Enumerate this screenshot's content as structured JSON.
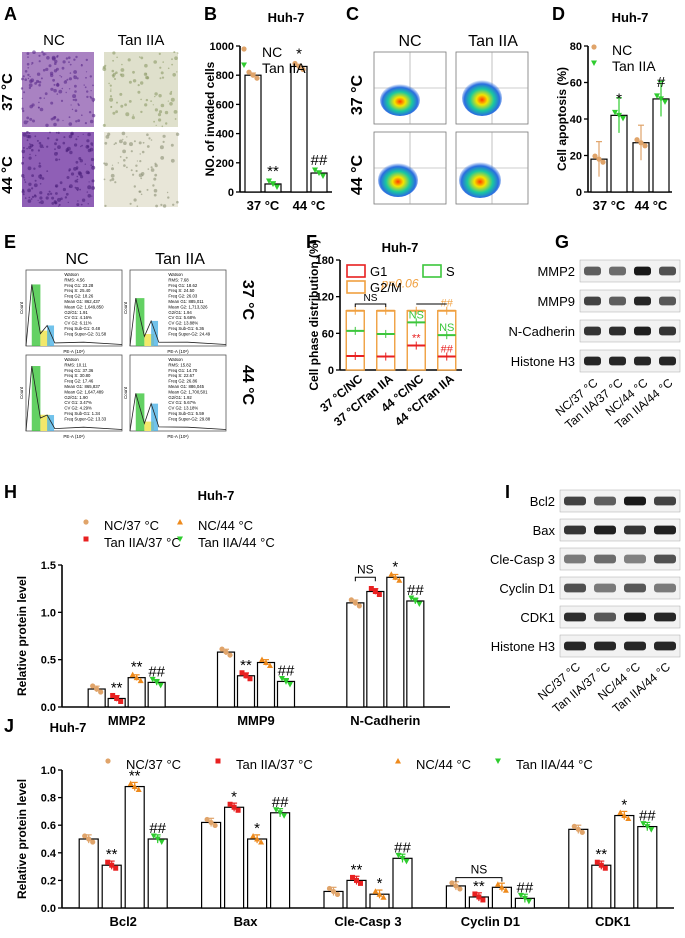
{
  "panels": {
    "A": {
      "letter": "A",
      "cols": [
        "NC",
        "Tan IIA"
      ],
      "rows": [
        "37 °C",
        "44 °C"
      ]
    },
    "C": {
      "letter": "C",
      "cols": [
        "NC",
        "Tan IIA"
      ],
      "rows": [
        "37 °C",
        "44 °C"
      ]
    },
    "E": {
      "letter": "E",
      "cols": [
        "NC",
        "Tan IIA"
      ],
      "rows": [
        "37 °C",
        "44 °C"
      ],
      "axis_x": "PE-A (10⁶)",
      "axis_y": "Count",
      "stats": [
        [
          "Watson",
          "RMS: 4.56",
          "Freq G1: 23.28",
          "Freq S: 25.40",
          "Freq G2: 18.26",
          "Mean G1: 862,437",
          "Mean G2: 1,649,850",
          "G2/G1: 1.91",
          "CV G1: 4.16%",
          "CV G2: 6.11%",
          "Freq Sub-G1: 0.48",
          "Freq Super-G2: 31.58"
        ],
        [
          "Watson",
          "RMS: 7.68",
          "Freq G1: 18.62",
          "Freq S: 24.50",
          "Freq G2: 26.03",
          "Mean G1: 885,011",
          "Mean G2: 1,713,326",
          "G2/G1: 1.94",
          "CV G1: 5.68%",
          "CV G2: 13.88%",
          "Freq Sub-G1: 6.36",
          "Freq Super-G2: 24.49"
        ],
        [
          "Watson",
          "RMS: 10.11",
          "Freq G1: 37.36",
          "Freq S: 30.80",
          "Freq G2: 17.46",
          "Mean G1: 865,837",
          "Mean G2: 1,647,489",
          "G2/G1: 1.90",
          "CV G1: 3.47%",
          "CV G2: 4.29%",
          "Freq Sub-G1: 1.34",
          "Freq Super-G2: 13.33"
        ],
        [
          "Watson",
          "RMS: 15.82",
          "Freq G1: 14.70",
          "Freq S: 22.67",
          "Freq G2: 26.86",
          "Mean G1: 886,045",
          "Mean G2: 1,700,501",
          "G2/G1: 1.92",
          "CV G1: 5.67%",
          "CV G2: 13.18%",
          "Freq Sub-G1: 5.59",
          "Freq Super-G2: 29.88"
        ]
      ]
    },
    "G": {
      "letter": "G",
      "bands": [
        "MMP2",
        "MMP9",
        "N-Cadherin",
        "Histone H3"
      ],
      "lanes": [
        "NC/37 °C",
        "Tan IIA/37 °C",
        "NC/44 °C",
        "Tan IIA/44 °C"
      ]
    },
    "I": {
      "letter": "I",
      "bands": [
        "Bcl2",
        "Bax",
        "Cle-Casp 3",
        "Cyclin D1",
        "CDK1",
        "Histone H3"
      ],
      "lanes": [
        "NC/37 °C",
        "Tan IIA/37 °C",
        "NC/44 °C",
        "Tan IIA/44 °C"
      ]
    }
  },
  "colors": {
    "nc37": "#e0a46a",
    "tan37": "#e82020",
    "nc44": "#ee8a1c",
    "tan44": "#2ecc2e",
    "g1": "#e82020",
    "s": "#3cc63c",
    "g2m": "#f0a040",
    "bar_edge": "#000000"
  },
  "chart_data": [
    {
      "id": "B",
      "letter": "B",
      "type": "bar",
      "title": "Huh-7",
      "ylabel": "NO. of invaded cells",
      "ylim": [
        0,
        1000
      ],
      "yticks": [
        "0",
        "200",
        "400",
        "600",
        "800",
        "1000"
      ],
      "categories": [
        "37 °C",
        "44 °C"
      ],
      "series": [
        {
          "name": "NC",
          "values": [
            800,
            860
          ]
        },
        {
          "name": "Tan IIA",
          "values": [
            55,
            130
          ]
        }
      ],
      "annotations": [
        {
          "text": "**",
          "series": 1,
          "category": 0
        },
        {
          "text": "*",
          "series": 0,
          "category": 1
        },
        {
          "text": "##",
          "series": 1,
          "category": 1
        }
      ]
    },
    {
      "id": "D",
      "letter": "D",
      "type": "bar",
      "title": "Huh-7",
      "ylabel": "Cell apoptosis (%)",
      "ylim": [
        0,
        80
      ],
      "yticks": [
        "0",
        "20",
        "40",
        "60",
        "80"
      ],
      "categories": [
        "37 °C",
        "44 °C"
      ],
      "series": [
        {
          "name": "NC",
          "values": [
            18,
            27
          ]
        },
        {
          "name": "Tan IIA",
          "values": [
            42,
            51
          ]
        }
      ],
      "annotations": [
        {
          "text": "*",
          "series": 1,
          "category": 0
        },
        {
          "text": "#",
          "series": 1,
          "category": 1
        }
      ]
    },
    {
      "id": "F",
      "letter": "F",
      "type": "bar",
      "title": "Huh-7",
      "ylabel": "Cell phase distribution (%)",
      "ylim": [
        0,
        180
      ],
      "yticks": [
        "0",
        "60",
        "120",
        "180"
      ],
      "categories": [
        "37 °C/NC",
        "37 °C/Tan IIA",
        "44 °C/NC",
        "44 °C/Tan IIA"
      ],
      "series": [
        {
          "name": "G1",
          "values": [
            23,
            22,
            40,
            22
          ]
        },
        {
          "name": "S",
          "values": [
            64,
            59,
            78,
            57
          ]
        },
        {
          "name": "G2/M",
          "values": [
            97,
            97,
            97,
            97
          ]
        }
      ],
      "pvalue": "p=0.06",
      "ns_bracket": "NS",
      "annotations": [
        {
          "text": "NS",
          "series": 1,
          "category": 2
        },
        {
          "text": "**",
          "series": 0,
          "category": 2
        },
        {
          "text": "NS",
          "series": 1,
          "category": 3
        },
        {
          "text": "##",
          "series": 0,
          "category": 3
        },
        {
          "text": "##",
          "series": 2,
          "category": 3
        }
      ]
    },
    {
      "id": "H",
      "letter": "H",
      "type": "bar",
      "title": "Huh-7",
      "ylabel": "Relative protein level",
      "ylim": [
        0,
        1.5
      ],
      "yticks": [
        "0.0",
        "0.5",
        "1.0",
        "1.5"
      ],
      "categories": [
        "MMP2",
        "MMP9",
        "N-Cadherin"
      ],
      "series": [
        {
          "name": "NC/37 °C",
          "values": [
            0.19,
            0.58,
            1.1
          ]
        },
        {
          "name": "Tan IIA/37 °C",
          "values": [
            0.09,
            0.33,
            1.22
          ]
        },
        {
          "name": "NC/44 °C",
          "values": [
            0.31,
            0.47,
            1.37
          ]
        },
        {
          "name": "Tan IIA/44 °C",
          "values": [
            0.26,
            0.27,
            1.12
          ]
        }
      ],
      "brackets": [
        {
          "text": "NS",
          "category": 2,
          "from": 0,
          "to": 1,
          "y": 1.37
        }
      ],
      "annotations": [
        {
          "text": "**",
          "series": 1,
          "category": 0
        },
        {
          "text": "**",
          "series": 2,
          "category": 0
        },
        {
          "text": "##",
          "series": 3,
          "category": 0
        },
        {
          "text": "**",
          "series": 1,
          "category": 1
        },
        {
          "text": "##",
          "series": 3,
          "category": 1
        },
        {
          "text": "*",
          "series": 2,
          "category": 2
        },
        {
          "text": "##",
          "series": 3,
          "category": 2
        }
      ]
    },
    {
      "id": "J",
      "letter": "J",
      "type": "bar",
      "title": "Huh-7",
      "ylabel": "Relative protein level",
      "ylim": [
        0,
        1.0
      ],
      "yticks": [
        "0.0",
        "0.2",
        "0.4",
        "0.6",
        "0.8",
        "1.0"
      ],
      "categories": [
        "Bcl2",
        "Bax",
        "Cle-Casp 3",
        "Cyclin D1",
        "CDK1"
      ],
      "series": [
        {
          "name": "NC/37 °C",
          "values": [
            0.5,
            0.62,
            0.12,
            0.16,
            0.57
          ]
        },
        {
          "name": "Tan IIA/37 °C",
          "values": [
            0.31,
            0.73,
            0.2,
            0.08,
            0.31
          ]
        },
        {
          "name": "NC/44 °C",
          "values": [
            0.88,
            0.5,
            0.1,
            0.15,
            0.67
          ]
        },
        {
          "name": "Tan IIA/44 °C",
          "values": [
            0.5,
            0.69,
            0.36,
            0.07,
            0.59
          ]
        }
      ],
      "brackets": [
        {
          "text": "NS",
          "category": 3,
          "from": 0,
          "to": 2,
          "y": 0.22
        }
      ],
      "annotations": [
        {
          "text": "**",
          "series": 1,
          "category": 0
        },
        {
          "text": "**",
          "series": 2,
          "category": 0
        },
        {
          "text": "##",
          "series": 3,
          "category": 0
        },
        {
          "text": "*",
          "series": 1,
          "category": 1
        },
        {
          "text": "*",
          "series": 2,
          "category": 1
        },
        {
          "text": "##",
          "series": 3,
          "category": 1
        },
        {
          "text": "**",
          "series": 1,
          "category": 2
        },
        {
          "text": "*",
          "series": 2,
          "category": 2
        },
        {
          "text": "##",
          "series": 3,
          "category": 2
        },
        {
          "text": "**",
          "series": 1,
          "category": 3
        },
        {
          "text": "##",
          "series": 3,
          "category": 3
        },
        {
          "text": "**",
          "series": 1,
          "category": 4
        },
        {
          "text": "*",
          "series": 2,
          "category": 4
        },
        {
          "text": "##",
          "series": 3,
          "category": 4
        }
      ]
    }
  ]
}
